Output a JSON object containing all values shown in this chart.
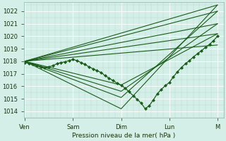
{
  "xlabel": "Pression niveau de la mer( hPa )",
  "bg_color": "#d4eee8",
  "plot_bg_color": "#d4eee8",
  "line_color": "#1a5c1a",
  "ylim": [
    1013.5,
    1022.7
  ],
  "yticks": [
    1014,
    1015,
    1016,
    1017,
    1018,
    1019,
    1020,
    1021,
    1022
  ],
  "xtick_labels": [
    "Ven",
    "Sam",
    "Dim",
    "Lun",
    "M"
  ],
  "xtick_positions": [
    0,
    24,
    48,
    72,
    96
  ],
  "xlim": [
    -0.5,
    99
  ],
  "fan_lines_up": [
    {
      "x": [
        0,
        96
      ],
      "y": [
        1018.0,
        1022.5
      ]
    },
    {
      "x": [
        0,
        96
      ],
      "y": [
        1018.0,
        1022.0
      ]
    },
    {
      "x": [
        0,
        96
      ],
      "y": [
        1018.0,
        1021.0
      ]
    },
    {
      "x": [
        0,
        96
      ],
      "y": [
        1018.0,
        1020.2
      ]
    },
    {
      "x": [
        0,
        96
      ],
      "y": [
        1018.0,
        1019.3
      ]
    }
  ],
  "fan_lines_down": [
    {
      "x": [
        0,
        48,
        96
      ],
      "y": [
        1018.0,
        1014.2,
        1022.5
      ]
    },
    {
      "x": [
        0,
        48,
        96
      ],
      "y": [
        1018.0,
        1015.1,
        1022.0
      ]
    },
    {
      "x": [
        0,
        48,
        96
      ],
      "y": [
        1018.0,
        1015.6,
        1021.0
      ]
    },
    {
      "x": [
        0,
        48,
        96
      ],
      "y": [
        1018.0,
        1016.1,
        1020.2
      ]
    }
  ],
  "main_x": [
    0,
    2,
    4,
    6,
    8,
    10,
    12,
    14,
    16,
    18,
    20,
    22,
    24,
    26,
    28,
    30,
    32,
    34,
    36,
    38,
    40,
    42,
    44,
    46,
    48,
    50,
    52,
    54,
    56,
    58,
    60,
    62,
    64,
    66,
    68,
    70,
    72,
    74,
    76,
    78,
    80,
    82,
    84,
    86,
    88,
    90,
    92,
    94,
    96
  ],
  "main_y": [
    1017.9,
    1017.85,
    1017.75,
    1017.65,
    1017.55,
    1017.5,
    1017.55,
    1017.65,
    1017.8,
    1017.9,
    1017.95,
    1018.05,
    1018.15,
    1018.05,
    1017.9,
    1017.75,
    1017.55,
    1017.4,
    1017.25,
    1017.1,
    1016.85,
    1016.65,
    1016.45,
    1016.25,
    1016.1,
    1015.85,
    1015.55,
    1015.25,
    1014.95,
    1014.65,
    1014.2,
    1014.45,
    1014.9,
    1015.4,
    1015.75,
    1016.05,
    1016.3,
    1016.75,
    1017.15,
    1017.5,
    1017.8,
    1018.05,
    1018.35,
    1018.6,
    1018.85,
    1019.1,
    1019.35,
    1019.65,
    1020.0
  ]
}
